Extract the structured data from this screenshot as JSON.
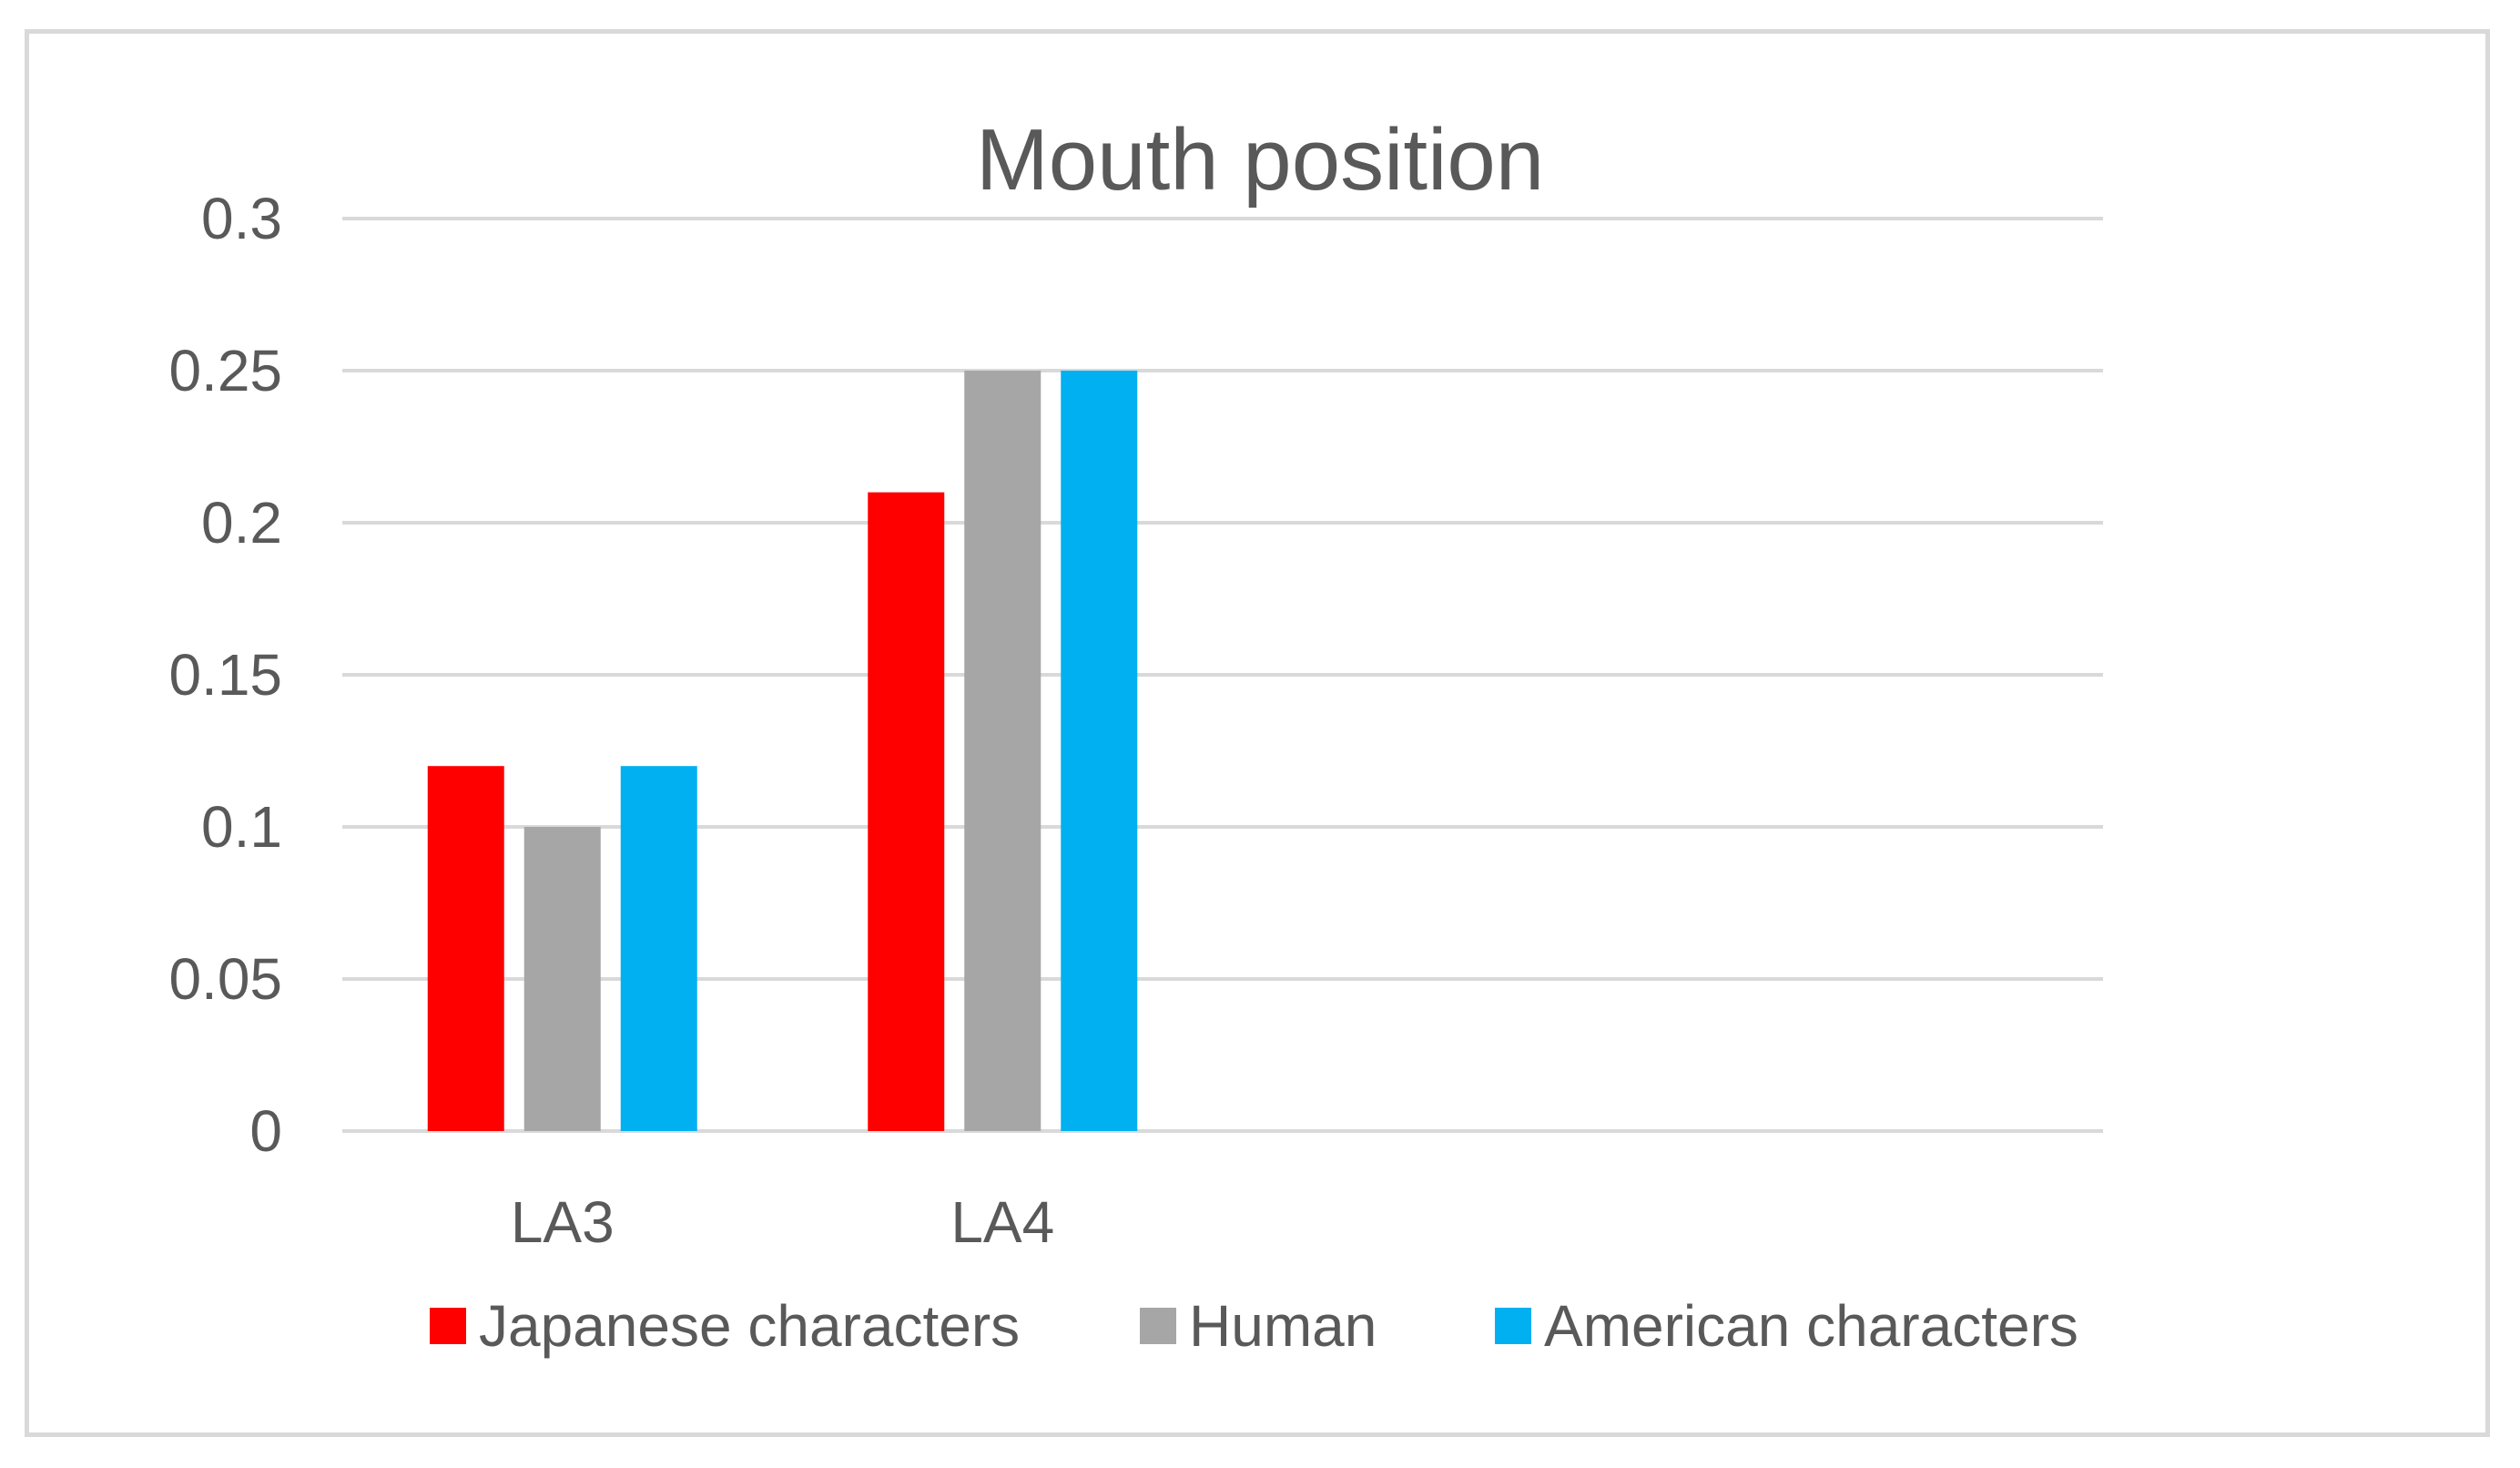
{
  "chart_data": {
    "type": "bar",
    "title": "Mouth position",
    "xlabel": "",
    "ylabel": "",
    "categories": [
      "LA3",
      "LA4"
    ],
    "series": [
      {
        "name": "Japanese characters",
        "color": "#ff0000",
        "values": [
          0.12,
          0.21
        ]
      },
      {
        "name": "Human",
        "color": "#a6a6a6",
        "values": [
          0.1,
          0.25
        ]
      },
      {
        "name": "American characters",
        "color": "#00b0f0",
        "values": [
          0.12,
          0.25
        ]
      }
    ],
    "ylim": [
      0,
      0.3
    ],
    "yticks": [
      "0",
      "0.05",
      "0.1",
      "0.15",
      "0.2",
      "0.25",
      "0.3"
    ],
    "grid": true,
    "legend_position": "bottom"
  }
}
